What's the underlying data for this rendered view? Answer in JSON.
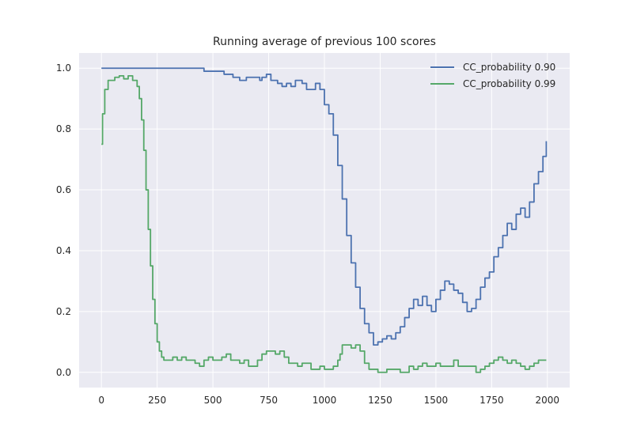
{
  "chart_data": {
    "type": "line",
    "title": "Running average of previous 100 scores",
    "xlabel": "",
    "ylabel": "",
    "xlim": [
      -100,
      2100
    ],
    "ylim": [
      -0.05,
      1.05
    ],
    "grid": true,
    "legend_position": "top-right",
    "x_ticks": [
      0,
      250,
      500,
      750,
      1000,
      1250,
      1500,
      1750,
      2000
    ],
    "x_tick_labels": [
      "0",
      "250",
      "500",
      "750",
      "1000",
      "1250",
      "1500",
      "1750",
      "2000"
    ],
    "y_ticks": [
      0.0,
      0.2,
      0.4,
      0.6,
      0.8,
      1.0
    ],
    "y_tick_labels": [
      "0.0",
      "0.2",
      "0.4",
      "0.6",
      "0.8",
      "1.0"
    ],
    "colors": {
      "background": "#eaeaf2",
      "grid": "#ffffff",
      "series1": "#4c72b0",
      "series2": "#55a868"
    },
    "series": [
      {
        "name": "CC_probability 0.90",
        "color": "#4c72b0",
        "points": [
          [
            0,
            1.0
          ],
          [
            450,
            1.0
          ],
          [
            460,
            0.99
          ],
          [
            540,
            0.99
          ],
          [
            550,
            0.98
          ],
          [
            580,
            0.98
          ],
          [
            590,
            0.97
          ],
          [
            610,
            0.97
          ],
          [
            620,
            0.96
          ],
          [
            640,
            0.96
          ],
          [
            650,
            0.97
          ],
          [
            700,
            0.97
          ],
          [
            710,
            0.96
          ],
          [
            720,
            0.97
          ],
          [
            740,
            0.98
          ],
          [
            760,
            0.96
          ],
          [
            790,
            0.95
          ],
          [
            810,
            0.94
          ],
          [
            830,
            0.95
          ],
          [
            850,
            0.94
          ],
          [
            870,
            0.96
          ],
          [
            900,
            0.95
          ],
          [
            920,
            0.93
          ],
          [
            940,
            0.93
          ],
          [
            960,
            0.95
          ],
          [
            980,
            0.93
          ],
          [
            1000,
            0.88
          ],
          [
            1020,
            0.85
          ],
          [
            1040,
            0.78
          ],
          [
            1060,
            0.68
          ],
          [
            1080,
            0.57
          ],
          [
            1100,
            0.45
          ],
          [
            1120,
            0.36
          ],
          [
            1140,
            0.28
          ],
          [
            1160,
            0.21
          ],
          [
            1180,
            0.16
          ],
          [
            1200,
            0.13
          ],
          [
            1220,
            0.09
          ],
          [
            1240,
            0.1
          ],
          [
            1260,
            0.11
          ],
          [
            1280,
            0.12
          ],
          [
            1300,
            0.11
          ],
          [
            1320,
            0.13
          ],
          [
            1340,
            0.15
          ],
          [
            1360,
            0.18
          ],
          [
            1380,
            0.21
          ],
          [
            1400,
            0.24
          ],
          [
            1420,
            0.22
          ],
          [
            1440,
            0.25
          ],
          [
            1460,
            0.22
          ],
          [
            1480,
            0.2
          ],
          [
            1500,
            0.24
          ],
          [
            1520,
            0.27
          ],
          [
            1540,
            0.3
          ],
          [
            1560,
            0.29
          ],
          [
            1580,
            0.27
          ],
          [
            1600,
            0.26
          ],
          [
            1620,
            0.23
          ],
          [
            1640,
            0.2
          ],
          [
            1660,
            0.21
          ],
          [
            1680,
            0.24
          ],
          [
            1700,
            0.28
          ],
          [
            1720,
            0.31
          ],
          [
            1740,
            0.33
          ],
          [
            1760,
            0.38
          ],
          [
            1780,
            0.41
          ],
          [
            1800,
            0.45
          ],
          [
            1820,
            0.49
          ],
          [
            1840,
            0.47
          ],
          [
            1860,
            0.52
          ],
          [
            1880,
            0.54
          ],
          [
            1900,
            0.51
          ],
          [
            1920,
            0.56
          ],
          [
            1940,
            0.62
          ],
          [
            1960,
            0.66
          ],
          [
            1980,
            0.71
          ],
          [
            1995,
            0.76
          ]
        ]
      },
      {
        "name": "CC_probability 0.99",
        "color": "#55a868",
        "points": [
          [
            0,
            0.75
          ],
          [
            5,
            0.85
          ],
          [
            15,
            0.93
          ],
          [
            30,
            0.96
          ],
          [
            60,
            0.97
          ],
          [
            80,
            0.975
          ],
          [
            100,
            0.965
          ],
          [
            120,
            0.975
          ],
          [
            140,
            0.96
          ],
          [
            160,
            0.94
          ],
          [
            170,
            0.9
          ],
          [
            180,
            0.83
          ],
          [
            190,
            0.73
          ],
          [
            200,
            0.6
          ],
          [
            210,
            0.47
          ],
          [
            220,
            0.35
          ],
          [
            230,
            0.24
          ],
          [
            240,
            0.16
          ],
          [
            250,
            0.1
          ],
          [
            260,
            0.07
          ],
          [
            270,
            0.05
          ],
          [
            280,
            0.04
          ],
          [
            300,
            0.04
          ],
          [
            320,
            0.05
          ],
          [
            340,
            0.04
          ],
          [
            360,
            0.05
          ],
          [
            380,
            0.04
          ],
          [
            400,
            0.04
          ],
          [
            420,
            0.03
          ],
          [
            440,
            0.02
          ],
          [
            460,
            0.04
          ],
          [
            480,
            0.05
          ],
          [
            500,
            0.04
          ],
          [
            520,
            0.04
          ],
          [
            540,
            0.05
          ],
          [
            560,
            0.06
          ],
          [
            580,
            0.04
          ],
          [
            600,
            0.04
          ],
          [
            620,
            0.03
          ],
          [
            640,
            0.04
          ],
          [
            660,
            0.02
          ],
          [
            680,
            0.02
          ],
          [
            700,
            0.04
          ],
          [
            720,
            0.06
          ],
          [
            740,
            0.07
          ],
          [
            760,
            0.07
          ],
          [
            780,
            0.06
          ],
          [
            800,
            0.07
          ],
          [
            820,
            0.05
          ],
          [
            840,
            0.03
          ],
          [
            860,
            0.03
          ],
          [
            880,
            0.02
          ],
          [
            900,
            0.03
          ],
          [
            920,
            0.03
          ],
          [
            940,
            0.01
          ],
          [
            960,
            0.01
          ],
          [
            980,
            0.02
          ],
          [
            1000,
            0.01
          ],
          [
            1020,
            0.01
          ],
          [
            1040,
            0.02
          ],
          [
            1060,
            0.04
          ],
          [
            1070,
            0.06
          ],
          [
            1080,
            0.09
          ],
          [
            1100,
            0.09
          ],
          [
            1120,
            0.08
          ],
          [
            1140,
            0.09
          ],
          [
            1160,
            0.07
          ],
          [
            1180,
            0.03
          ],
          [
            1200,
            0.01
          ],
          [
            1220,
            0.01
          ],
          [
            1240,
            0.0
          ],
          [
            1260,
            0.0
          ],
          [
            1280,
            0.01
          ],
          [
            1300,
            0.01
          ],
          [
            1320,
            0.01
          ],
          [
            1340,
            0.0
          ],
          [
            1360,
            0.0
          ],
          [
            1380,
            0.02
          ],
          [
            1400,
            0.01
          ],
          [
            1420,
            0.02
          ],
          [
            1440,
            0.03
          ],
          [
            1460,
            0.02
          ],
          [
            1480,
            0.02
          ],
          [
            1500,
            0.03
          ],
          [
            1520,
            0.02
          ],
          [
            1540,
            0.02
          ],
          [
            1560,
            0.02
          ],
          [
            1580,
            0.04
          ],
          [
            1600,
            0.02
          ],
          [
            1620,
            0.02
          ],
          [
            1640,
            0.02
          ],
          [
            1660,
            0.02
          ],
          [
            1680,
            0.0
          ],
          [
            1700,
            0.01
          ],
          [
            1720,
            0.02
          ],
          [
            1740,
            0.03
          ],
          [
            1760,
            0.04
          ],
          [
            1780,
            0.05
          ],
          [
            1800,
            0.04
          ],
          [
            1820,
            0.03
          ],
          [
            1840,
            0.04
          ],
          [
            1860,
            0.03
          ],
          [
            1880,
            0.02
          ],
          [
            1900,
            0.01
          ],
          [
            1920,
            0.02
          ],
          [
            1940,
            0.03
          ],
          [
            1960,
            0.04
          ],
          [
            1980,
            0.04
          ],
          [
            1995,
            0.04
          ]
        ]
      }
    ]
  }
}
